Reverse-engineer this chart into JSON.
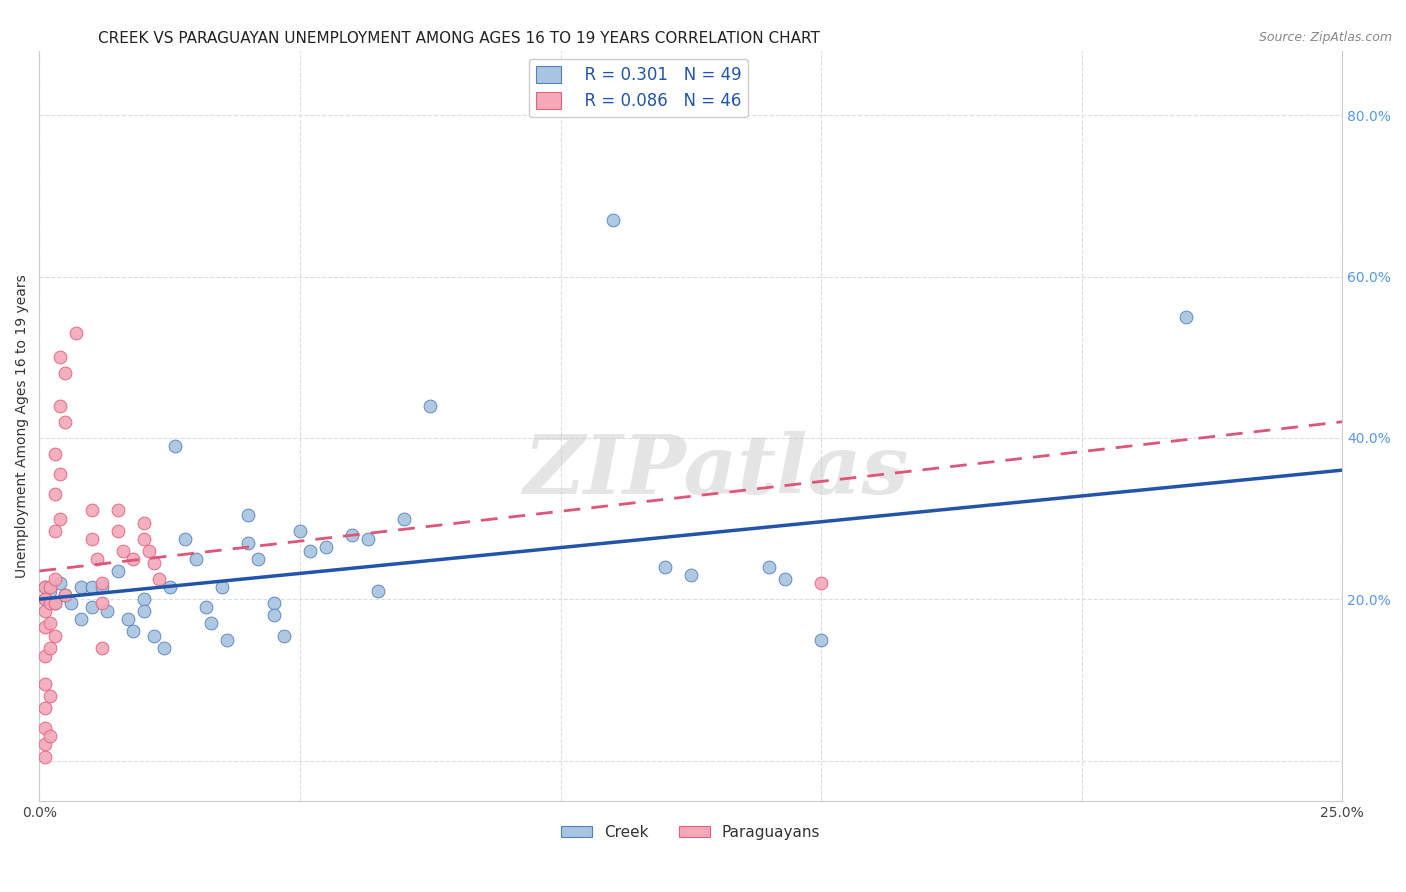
{
  "title": "CREEK VS PARAGUAYAN UNEMPLOYMENT AMONG AGES 16 TO 19 YEARS CORRELATION CHART",
  "source": "Source: ZipAtlas.com",
  "ylabel": "Unemployment Among Ages 16 to 19 years",
  "xlim": [
    0.0,
    0.25
  ],
  "ylim": [
    -0.05,
    0.88
  ],
  "creek_R": 0.301,
  "creek_N": 49,
  "paraguayan_R": 0.086,
  "paraguayan_N": 46,
  "creek_color": "#A8C4E0",
  "paraguayan_color": "#F4A8B8",
  "creek_edge_color": "#5580BB",
  "paraguayan_edge_color": "#E06080",
  "creek_line_color": "#2255AA",
  "paraguayan_line_color": "#DD5577",
  "background_color": "#FFFFFF",
  "grid_color": "#DDDDDD",
  "right_tick_color": "#5599EE",
  "creek_scatter": [
    [
      0.001,
      0.215
    ],
    [
      0.001,
      0.2
    ],
    [
      0.002,
      0.21
    ],
    [
      0.003,
      0.195
    ],
    [
      0.004,
      0.22
    ],
    [
      0.005,
      0.205
    ],
    [
      0.006,
      0.195
    ],
    [
      0.008,
      0.215
    ],
    [
      0.008,
      0.175
    ],
    [
      0.01,
      0.215
    ],
    [
      0.01,
      0.19
    ],
    [
      0.012,
      0.215
    ],
    [
      0.013,
      0.185
    ],
    [
      0.015,
      0.235
    ],
    [
      0.017,
      0.175
    ],
    [
      0.018,
      0.16
    ],
    [
      0.02,
      0.2
    ],
    [
      0.02,
      0.185
    ],
    [
      0.022,
      0.155
    ],
    [
      0.024,
      0.14
    ],
    [
      0.025,
      0.215
    ],
    [
      0.026,
      0.39
    ],
    [
      0.028,
      0.275
    ],
    [
      0.03,
      0.25
    ],
    [
      0.032,
      0.19
    ],
    [
      0.033,
      0.17
    ],
    [
      0.035,
      0.215
    ],
    [
      0.036,
      0.15
    ],
    [
      0.04,
      0.305
    ],
    [
      0.04,
      0.27
    ],
    [
      0.042,
      0.25
    ],
    [
      0.045,
      0.195
    ],
    [
      0.045,
      0.18
    ],
    [
      0.047,
      0.155
    ],
    [
      0.05,
      0.285
    ],
    [
      0.052,
      0.26
    ],
    [
      0.055,
      0.265
    ],
    [
      0.06,
      0.28
    ],
    [
      0.063,
      0.275
    ],
    [
      0.065,
      0.21
    ],
    [
      0.07,
      0.3
    ],
    [
      0.075,
      0.44
    ],
    [
      0.11,
      0.67
    ],
    [
      0.12,
      0.24
    ],
    [
      0.125,
      0.23
    ],
    [
      0.14,
      0.24
    ],
    [
      0.143,
      0.225
    ],
    [
      0.15,
      0.15
    ],
    [
      0.22,
      0.55
    ]
  ],
  "paraguayan_scatter": [
    [
      0.001,
      0.215
    ],
    [
      0.001,
      0.2
    ],
    [
      0.001,
      0.185
    ],
    [
      0.001,
      0.165
    ],
    [
      0.001,
      0.13
    ],
    [
      0.001,
      0.095
    ],
    [
      0.001,
      0.065
    ],
    [
      0.001,
      0.04
    ],
    [
      0.001,
      0.02
    ],
    [
      0.001,
      0.005
    ],
    [
      0.002,
      0.215
    ],
    [
      0.002,
      0.195
    ],
    [
      0.002,
      0.17
    ],
    [
      0.002,
      0.14
    ],
    [
      0.002,
      0.08
    ],
    [
      0.002,
      0.03
    ],
    [
      0.003,
      0.38
    ],
    [
      0.003,
      0.33
    ],
    [
      0.003,
      0.285
    ],
    [
      0.003,
      0.225
    ],
    [
      0.003,
      0.195
    ],
    [
      0.003,
      0.155
    ],
    [
      0.004,
      0.5
    ],
    [
      0.004,
      0.44
    ],
    [
      0.004,
      0.355
    ],
    [
      0.004,
      0.3
    ],
    [
      0.005,
      0.48
    ],
    [
      0.005,
      0.42
    ],
    [
      0.005,
      0.205
    ],
    [
      0.007,
      0.53
    ],
    [
      0.01,
      0.31
    ],
    [
      0.01,
      0.275
    ],
    [
      0.011,
      0.25
    ],
    [
      0.012,
      0.22
    ],
    [
      0.012,
      0.195
    ],
    [
      0.012,
      0.14
    ],
    [
      0.015,
      0.31
    ],
    [
      0.015,
      0.285
    ],
    [
      0.016,
      0.26
    ],
    [
      0.018,
      0.25
    ],
    [
      0.02,
      0.295
    ],
    [
      0.02,
      0.275
    ],
    [
      0.021,
      0.26
    ],
    [
      0.022,
      0.245
    ],
    [
      0.023,
      0.225
    ],
    [
      0.15,
      0.22
    ]
  ],
  "creek_trend_x": [
    0.0,
    0.25
  ],
  "creek_trend_y": [
    0.2,
    0.36
  ],
  "paraguayan_trend_x": [
    0.0,
    0.25
  ],
  "paraguayan_trend_y": [
    0.235,
    0.42
  ],
  "watermark_text": "ZIPatlas",
  "legend_label_color": "#2255AA",
  "title_fontsize": 11,
  "label_fontsize": 10,
  "tick_fontsize": 10,
  "marker_size": 85
}
